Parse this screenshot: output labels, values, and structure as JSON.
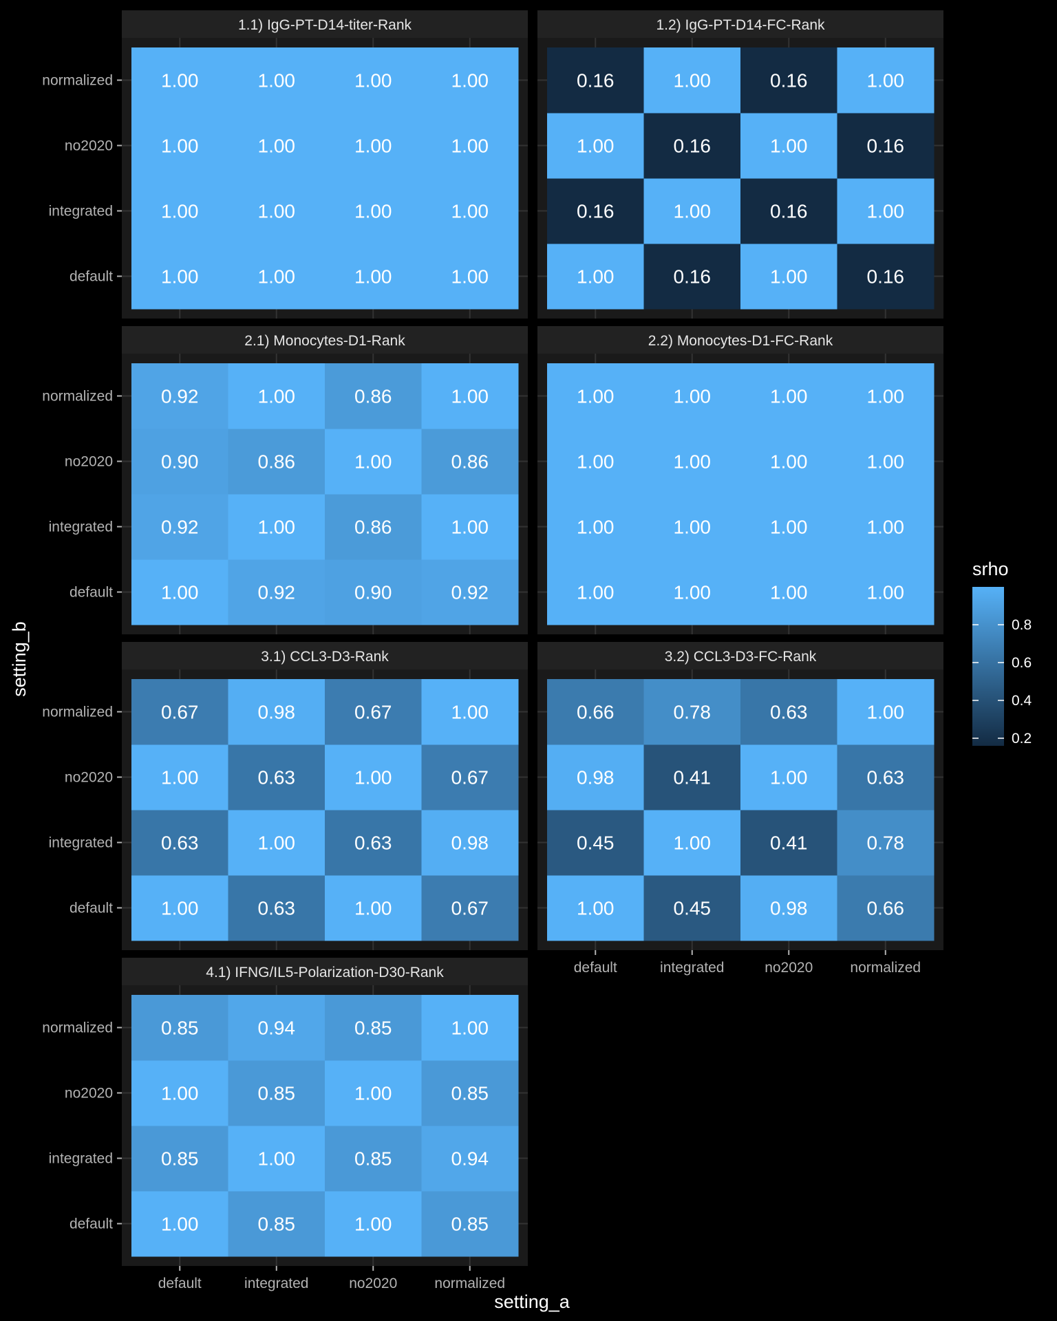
{
  "chart_data": {
    "type": "heatmap",
    "x_label": "setting_a",
    "y_label": "setting_b",
    "x_categories": [
      "default",
      "integrated",
      "no2020",
      "normalized"
    ],
    "y_categories": [
      "default",
      "integrated",
      "no2020",
      "normalized"
    ],
    "value_format": "2 decimals",
    "panels": [
      {
        "title": "1.1) IgG-PT-D14-titer-Rank",
        "matrix": [
          [
            1.0,
            1.0,
            1.0,
            1.0
          ],
          [
            1.0,
            1.0,
            1.0,
            1.0
          ],
          [
            1.0,
            1.0,
            1.0,
            1.0
          ],
          [
            1.0,
            1.0,
            1.0,
            1.0
          ]
        ]
      },
      {
        "title": "1.2) IgG-PT-D14-FC-Rank",
        "matrix": [
          [
            1.0,
            0.16,
            1.0,
            0.16
          ],
          [
            0.16,
            1.0,
            0.16,
            1.0
          ],
          [
            1.0,
            0.16,
            1.0,
            0.16
          ],
          [
            0.16,
            1.0,
            0.16,
            1.0
          ]
        ]
      },
      {
        "title": "2.1) Monocytes-D1-Rank",
        "matrix": [
          [
            1.0,
            0.92,
            0.9,
            0.92
          ],
          [
            0.92,
            1.0,
            0.86,
            1.0
          ],
          [
            0.9,
            0.86,
            1.0,
            0.86
          ],
          [
            0.92,
            1.0,
            0.86,
            1.0
          ]
        ]
      },
      {
        "title": "2.2) Monocytes-D1-FC-Rank",
        "matrix": [
          [
            1.0,
            1.0,
            1.0,
            1.0
          ],
          [
            1.0,
            1.0,
            1.0,
            1.0
          ],
          [
            1.0,
            1.0,
            1.0,
            1.0
          ],
          [
            1.0,
            1.0,
            1.0,
            1.0
          ]
        ]
      },
      {
        "title": "3.1) CCL3-D3-Rank",
        "matrix": [
          [
            1.0,
            0.63,
            1.0,
            0.67
          ],
          [
            0.63,
            1.0,
            0.63,
            0.98
          ],
          [
            1.0,
            0.63,
            1.0,
            0.67
          ],
          [
            0.67,
            0.98,
            0.67,
            1.0
          ]
        ]
      },
      {
        "title": "3.2) CCL3-D3-FC-Rank",
        "matrix": [
          [
            1.0,
            0.45,
            0.98,
            0.66
          ],
          [
            0.45,
            1.0,
            0.41,
            0.78
          ],
          [
            0.98,
            0.41,
            1.0,
            0.63
          ],
          [
            0.66,
            0.78,
            0.63,
            1.0
          ]
        ]
      },
      {
        "title": "4.1) IFNG/IL5-Polarization-D30-Rank",
        "matrix": [
          [
            1.0,
            0.85,
            1.0,
            0.85
          ],
          [
            0.85,
            1.0,
            0.85,
            0.94
          ],
          [
            1.0,
            0.85,
            1.0,
            0.85
          ],
          [
            0.85,
            0.94,
            0.85,
            1.0
          ]
        ]
      }
    ],
    "legend": {
      "title": "srho",
      "ticks": [
        0.2,
        0.4,
        0.6,
        0.8
      ],
      "tick_labels": [
        "0.2",
        "0.4",
        "0.6",
        "0.8"
      ],
      "range": [
        0.16,
        1.0
      ],
      "low_color": "#132B43",
      "high_color": "#56B1F7",
      "placement": "right"
    },
    "colors": {
      "background": "#000000",
      "panel_background": "#1a1a1a",
      "strip_background": "#222222",
      "strip_text": "#e6e6e6",
      "axis_text": "#b3b3b3",
      "axis_title": "#ffffff",
      "cell_text": "#ffffff"
    }
  }
}
